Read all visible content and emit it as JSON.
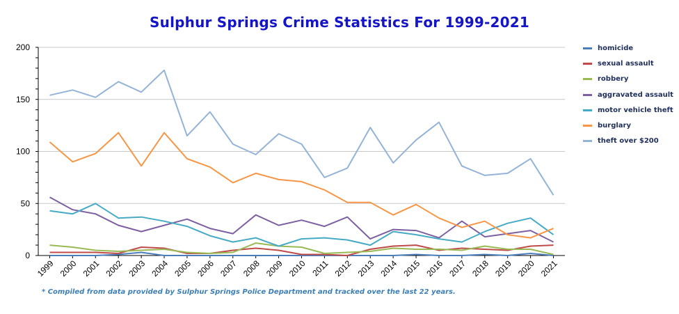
{
  "chart_data": {
    "type": "line",
    "title": "Sulphur Springs Crime Statistics For 1999-2021",
    "xlabel": "",
    "ylabel": "",
    "ylim": [
      0,
      200
    ],
    "yticks": [
      0,
      50,
      100,
      150,
      200
    ],
    "grid": "horizontal",
    "legend_position": "right",
    "x": [
      "1999",
      "2000",
      "2001",
      "2002",
      "2003",
      "2004",
      "2005",
      "2006",
      "2007",
      "2008",
      "2009",
      "2010",
      "2011",
      "2012",
      "2013",
      "2014",
      "2015",
      "2016",
      "2017",
      "2018",
      "2019",
      "2020",
      "2021"
    ],
    "series": [
      {
        "name": "homicide",
        "color": "#4a7ebb",
        "values": [
          0,
          0,
          0,
          1,
          3,
          0,
          0,
          0,
          0,
          0,
          0,
          0,
          0,
          0,
          0,
          0,
          1,
          0,
          0,
          1,
          0,
          2,
          0
        ]
      },
      {
        "name": "sexual assault",
        "color": "#be4b48",
        "values": [
          3,
          3,
          3,
          2,
          8,
          7,
          2,
          2,
          5,
          7,
          5,
          1,
          1,
          0,
          6,
          9,
          10,
          5,
          7,
          6,
          5,
          9,
          10
        ]
      },
      {
        "name": "robbery",
        "color": "#98b954",
        "values": [
          10,
          8,
          5,
          4,
          5,
          6,
          3,
          2,
          3,
          12,
          9,
          8,
          2,
          3,
          4,
          7,
          6,
          6,
          5,
          9,
          6,
          6,
          1
        ]
      },
      {
        "name": "aggravated assault",
        "color": "#7d60a0",
        "values": [
          56,
          44,
          40,
          29,
          23,
          29,
          35,
          26,
          21,
          39,
          29,
          34,
          28,
          37,
          16,
          25,
          24,
          17,
          33,
          18,
          21,
          24,
          13
        ]
      },
      {
        "name": "motor vehicle theft",
        "color": "#46aac5",
        "values": [
          43,
          40,
          50,
          36,
          37,
          33,
          28,
          19,
          13,
          17,
          9,
          16,
          17,
          15,
          10,
          23,
          20,
          16,
          13,
          23,
          31,
          36,
          20
        ]
      },
      {
        "name": "burglary",
        "color": "#f79646",
        "values": [
          109,
          90,
          98,
          118,
          86,
          118,
          93,
          85,
          70,
          79,
          73,
          71,
          63,
          51,
          51,
          39,
          49,
          36,
          27,
          33,
          20,
          17,
          26
        ]
      },
      {
        "name": "theft over $200",
        "color": "#95b3d7",
        "values": [
          154,
          159,
          152,
          167,
          157,
          178,
          115,
          138,
          107,
          97,
          117,
          107,
          75,
          84,
          123,
          89,
          111,
          128,
          86,
          77,
          79,
          93,
          58
        ]
      }
    ],
    "footnote": "* Compiled from data provided by Sulphur Springs Police Department and tracked over the last 22 years."
  }
}
